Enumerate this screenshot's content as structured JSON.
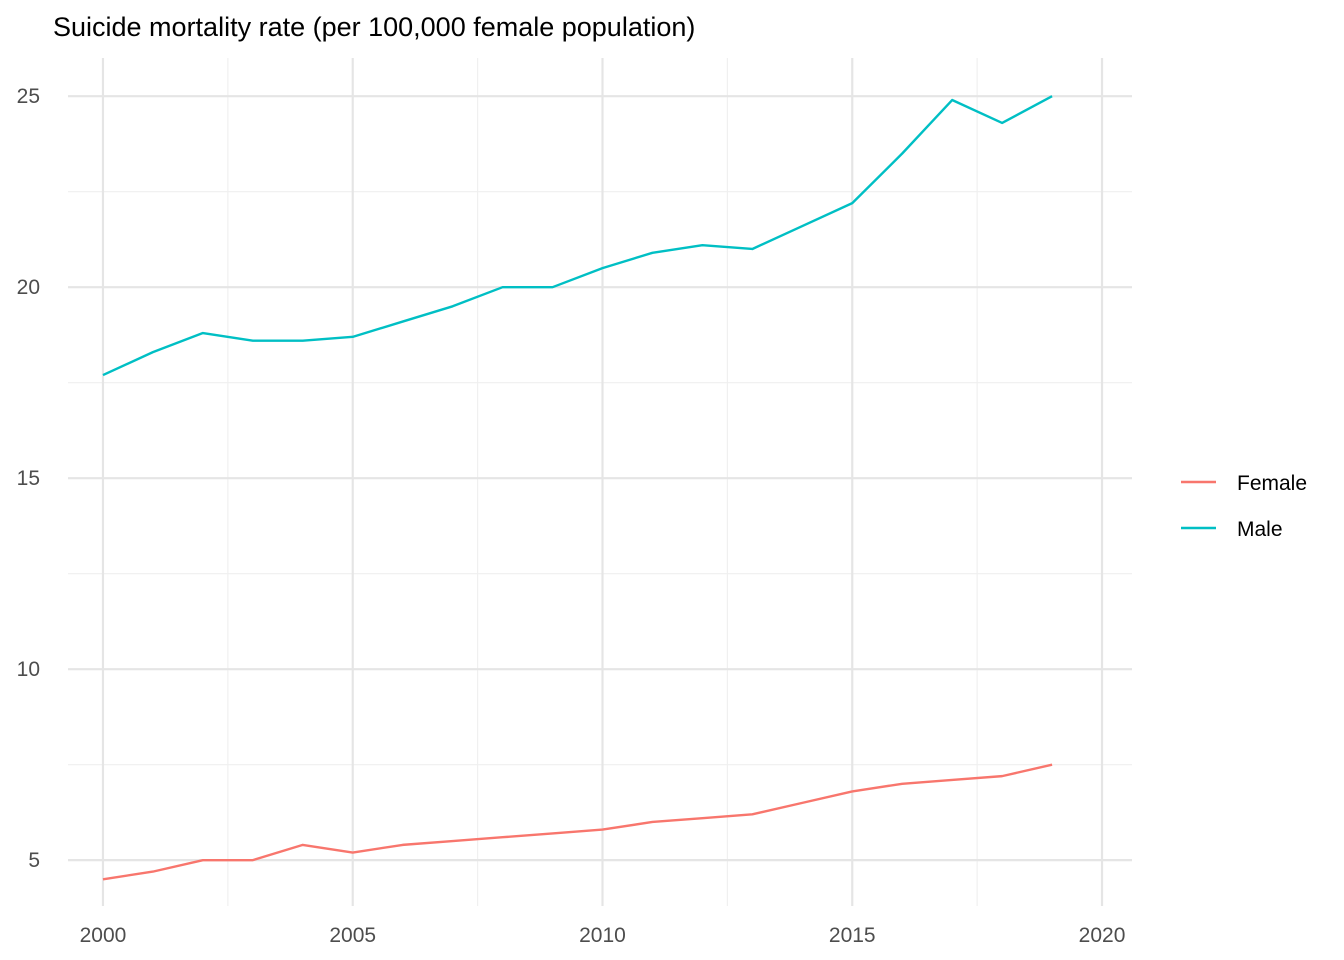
{
  "chart_data": {
    "type": "line",
    "title": "Suicide mortality rate (per 100,000 female population)",
    "xlabel": "",
    "ylabel": "",
    "x": [
      2000,
      2001,
      2002,
      2003,
      2004,
      2005,
      2006,
      2007,
      2008,
      2009,
      2010,
      2011,
      2012,
      2013,
      2014,
      2015,
      2016,
      2017,
      2018,
      2019
    ],
    "series": [
      {
        "name": "Female",
        "color": "#F8766D",
        "values": [
          4.5,
          4.7,
          5.0,
          5.0,
          5.4,
          5.2,
          5.4,
          5.5,
          5.6,
          5.7,
          5.8,
          6.0,
          6.1,
          6.2,
          6.5,
          6.8,
          7.0,
          7.1,
          7.2,
          7.5
        ]
      },
      {
        "name": "Male",
        "color": "#00BFC4",
        "values": [
          17.7,
          18.3,
          18.8,
          18.6,
          18.6,
          18.7,
          19.1,
          19.5,
          20.0,
          20.0,
          20.5,
          20.9,
          21.1,
          21.0,
          21.6,
          22.2,
          23.5,
          24.9,
          24.3,
          25.0
        ]
      }
    ],
    "xlim": [
      1999.3,
      2020.6
    ],
    "ylim": [
      3.8,
      26.0
    ],
    "x_ticks": [
      "2000",
      "2005",
      "2010",
      "2015",
      "2020"
    ],
    "y_ticks": [
      "5",
      "10",
      "15",
      "20",
      "25"
    ],
    "grid": true,
    "legend_position": "right"
  }
}
